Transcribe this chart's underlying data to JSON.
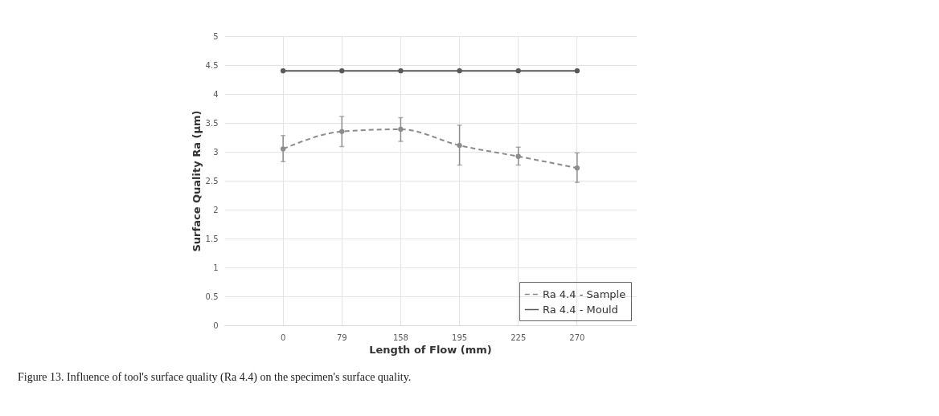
{
  "chart_data": {
    "type": "line",
    "xlabel": "Length of Flow (mm)",
    "ylabel": "Surface Quality Ra (µm)",
    "categories": [
      "0",
      "79",
      "158",
      "195",
      "225",
      "270"
    ],
    "series": [
      {
        "name": "Ra 4.4 - Sample",
        "color": "#8c8c8c",
        "line_style": "dashed",
        "values": [
          3.05,
          3.35,
          3.39,
          3.11,
          2.92,
          2.72
        ],
        "errors": [
          [
            2.83,
            3.28
          ],
          [
            3.09,
            3.61
          ],
          [
            3.18,
            3.59
          ],
          [
            2.77,
            3.46
          ],
          [
            2.77,
            3.08
          ],
          [
            2.47,
            2.98
          ]
        ]
      },
      {
        "name": "Ra 4.4 - Mould",
        "color": "#595959",
        "line_style": "solid",
        "values": [
          4.4,
          4.4,
          4.4,
          4.4,
          4.4,
          4.4
        ]
      }
    ],
    "ylim": [
      0,
      5
    ],
    "yticks": [
      0,
      0.5,
      1,
      1.5,
      2,
      2.5,
      3,
      3.5,
      4,
      4.5,
      5
    ],
    "grid": true,
    "legend": "bottom right",
    "marker": "circle",
    "annotations": [
      "Figure 13. Influence of tool's surface quality (Ra 4.4) on the specimen's surface quality."
    ]
  }
}
